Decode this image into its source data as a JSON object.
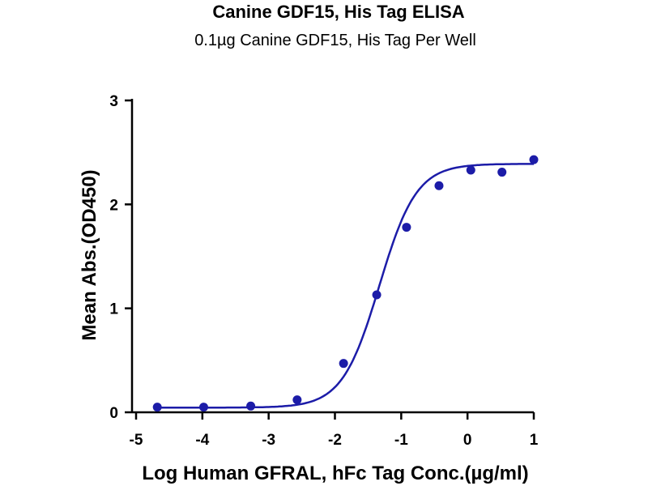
{
  "chart_data": {
    "type": "scatter",
    "title": "Canine GDF15, His Tag ELISA",
    "subtitle": "0.1µg Canine GDF15, His Tag Per Well",
    "xlabel": "Log Human GFRAL, hFc Tag Conc.(µg/ml)",
    "ylabel": "Mean Abs.(OD450)",
    "xlim": [
      -5,
      1
    ],
    "ylim": [
      0,
      3
    ],
    "x_ticks": [
      "-5",
      "-4",
      "-3",
      "-2",
      "-1",
      "0",
      "1"
    ],
    "y_ticks": [
      "0",
      "1",
      "2",
      "3"
    ],
    "grid": false,
    "series": [
      {
        "x": [
          -4.68,
          -3.98,
          -3.27,
          -2.57,
          -1.87,
          -1.37,
          -0.92,
          -0.43,
          0.05,
          0.52,
          1.0
        ],
        "y": [
          0.05,
          0.05,
          0.06,
          0.12,
          0.47,
          1.13,
          1.78,
          2.18,
          2.33,
          2.31,
          2.43
        ],
        "fit": {
          "bottom": 0.045,
          "top": 2.39,
          "logEC50": -1.33,
          "hill": 1.55
        }
      }
    ],
    "color": "#1c1ca8"
  }
}
